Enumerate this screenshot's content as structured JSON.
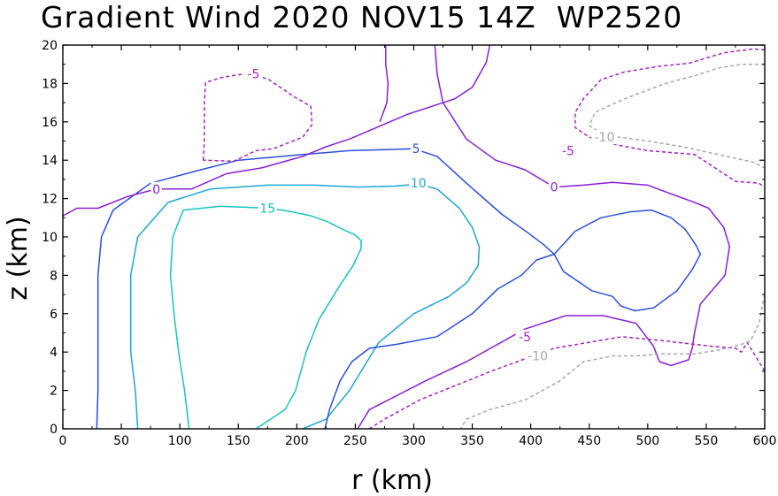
{
  "chart_data": {
    "type": "contour",
    "title": "Gradient Wind 2020 NOV15 14Z  WP2520",
    "xlabel": "r (km)",
    "ylabel": "z (km)",
    "xlim": [
      0,
      600
    ],
    "ylim": [
      0,
      20
    ],
    "xticks": [
      "0",
      "50",
      "100",
      "150",
      "200",
      "250",
      "300",
      "350",
      "400",
      "450",
      "500",
      "550",
      "600"
    ],
    "yticks": [
      "0",
      "2",
      "4",
      "6",
      "8",
      "10",
      "12",
      "14",
      "16",
      "18",
      "20"
    ],
    "colors": {
      "15": "#16c4c4",
      "10": "#1ea6dc",
      "5": "#2a4fe0",
      "0": "#8a1fd8",
      "-5": "#a81fc8",
      "-10": "#a8a8a8"
    },
    "contours": [
      {
        "level": 15,
        "label": "15",
        "dashed": false,
        "label_at": [
          175,
          11.5
        ],
        "points": [
          [
            108,
            0
          ],
          [
            104,
            2
          ],
          [
            99,
            4
          ],
          [
            95,
            6
          ],
          [
            92,
            8
          ],
          [
            94,
            10
          ],
          [
            103,
            11.4
          ],
          [
            135,
            11.6
          ],
          [
            177,
            11.5
          ],
          [
            197,
            11.3
          ],
          [
            212,
            11.1
          ],
          [
            226,
            10.8
          ],
          [
            241,
            10.35
          ],
          [
            250,
            10.1
          ],
          [
            255,
            9.8
          ],
          [
            255,
            9.4
          ],
          [
            248,
            8.5
          ],
          [
            235,
            7.3
          ],
          [
            219,
            5.7
          ],
          [
            208,
            4
          ],
          [
            199,
            2
          ],
          [
            190,
            1
          ],
          [
            170,
            0.2
          ],
          [
            165,
            0
          ]
        ]
      },
      {
        "level": 10,
        "label": "10",
        "dashed": false,
        "label_at": [
          304,
          12.8
        ],
        "points": [
          [
            64,
            0
          ],
          [
            62,
            2
          ],
          [
            58,
            4
          ],
          [
            58,
            6
          ],
          [
            58,
            8
          ],
          [
            64,
            10
          ],
          [
            90,
            11.8
          ],
          [
            126,
            12.5
          ],
          [
            175,
            12.7
          ],
          [
            215,
            12.7
          ],
          [
            252,
            12.6
          ],
          [
            283,
            12.65
          ],
          [
            305,
            12.75
          ],
          [
            320,
            12.5
          ],
          [
            339,
            11.5
          ],
          [
            350,
            10.5
          ],
          [
            356,
            9.5
          ],
          [
            355,
            8.5
          ],
          [
            345,
            7.6
          ],
          [
            330,
            6.9
          ],
          [
            300,
            6
          ],
          [
            270,
            4.5
          ],
          [
            245,
            2
          ],
          [
            225,
            0.5
          ],
          [
            205,
            0
          ]
        ]
      },
      {
        "level": 5,
        "label": "5",
        "dashed": false,
        "label_at": [
          302,
          14.6
        ],
        "points": [
          [
            29,
            0
          ],
          [
            30,
            2
          ],
          [
            30,
            4
          ],
          [
            30,
            6
          ],
          [
            30,
            8
          ],
          [
            33,
            10
          ],
          [
            43,
            11.4
          ],
          [
            75,
            12.8
          ],
          [
            118,
            13.5
          ],
          [
            150,
            14
          ],
          [
            205,
            14.3
          ],
          [
            245,
            14.5
          ],
          [
            275,
            14.55
          ],
          [
            300,
            14.6
          ],
          [
            320,
            14.2
          ],
          [
            345,
            12.8
          ],
          [
            375,
            11.2
          ],
          [
            398,
            10.2
          ],
          [
            411,
            9.6
          ],
          [
            420,
            9.1
          ],
          [
            438,
            10.3
          ],
          [
            460,
            11
          ],
          [
            484,
            11.3
          ],
          [
            503,
            11.4
          ],
          [
            520,
            11
          ],
          [
            532,
            10.4
          ],
          [
            541,
            9.6
          ],
          [
            545,
            9.1
          ],
          [
            538,
            8.3
          ],
          [
            525,
            7.2
          ],
          [
            505,
            6.3
          ],
          [
            489,
            6.15
          ],
          [
            477,
            6.4
          ],
          [
            470,
            6.9
          ],
          [
            452,
            7.2
          ],
          [
            440,
            7.7
          ],
          [
            428,
            8.2
          ],
          [
            420,
            9.1
          ],
          [
            405,
            8.8
          ],
          [
            392,
            8
          ],
          [
            372,
            7.3
          ],
          [
            350,
            6
          ],
          [
            320,
            4.8
          ],
          [
            285,
            4.4
          ],
          [
            262,
            4.2
          ],
          [
            247,
            3.5
          ],
          [
            237,
            2.5
          ],
          [
            228,
            1
          ],
          [
            224,
            0
          ]
        ]
      },
      {
        "level": 0,
        "label": "0",
        "dashed": false,
        "label_at": [
          80,
          12.5
        ],
        "points": [
          [
            0,
            11.1
          ],
          [
            12,
            11.5
          ],
          [
            30,
            11.5
          ],
          [
            55,
            12.1
          ],
          [
            80,
            12.5
          ],
          [
            110,
            12.5
          ],
          [
            140,
            13.3
          ],
          [
            170,
            13.6
          ],
          [
            205,
            14.2
          ],
          [
            225,
            14.7
          ],
          [
            245,
            15.1
          ],
          [
            270,
            15.75
          ],
          [
            295,
            16.4
          ],
          [
            335,
            17.2
          ],
          [
            350,
            17.8
          ],
          [
            362,
            19.1
          ],
          [
            365,
            20
          ]
        ]
      },
      {
        "level": 0,
        "label": "0",
        "dashed": false,
        "label_at": [
          420,
          12.6
        ],
        "points": [
          [
            318,
            20
          ],
          [
            320,
            18.5
          ],
          [
            325,
            17
          ],
          [
            345,
            15.1
          ],
          [
            370,
            14
          ],
          [
            395,
            13.5
          ],
          [
            420,
            12.6
          ],
          [
            445,
            12.7
          ],
          [
            470,
            12.85
          ],
          [
            500,
            12.7
          ],
          [
            522,
            12.2
          ],
          [
            540,
            11.8
          ],
          [
            552,
            11.5
          ],
          [
            565,
            10.5
          ],
          [
            570,
            9.5
          ],
          [
            566,
            8
          ],
          [
            545,
            6.5
          ],
          [
            540,
            5
          ],
          [
            538,
            4.2
          ],
          [
            535,
            3.6
          ],
          [
            520,
            3.3
          ],
          [
            510,
            3.5
          ],
          [
            505,
            4.3
          ],
          [
            490,
            5.5
          ],
          [
            462,
            5.9
          ],
          [
            430,
            5.9
          ],
          [
            395,
            5.2
          ],
          [
            345,
            3.5
          ],
          [
            310,
            2.5
          ],
          [
            262,
            1
          ],
          [
            252,
            0
          ]
        ]
      },
      {
        "level": 0,
        "label": "",
        "dashed": false,
        "points": [
          [
            276,
            20
          ],
          [
            276,
            19
          ],
          [
            278,
            18
          ],
          [
            277,
            17
          ],
          [
            271,
            16
          ]
        ]
      },
      {
        "level": -5,
        "label": "-5",
        "dashed": true,
        "label_at": [
          163,
          18.5
        ],
        "points": [
          [
            120,
            14
          ],
          [
            121,
            15
          ],
          [
            121,
            16
          ],
          [
            121,
            17
          ],
          [
            122,
            18.05
          ],
          [
            135,
            18.3
          ],
          [
            155,
            18.5
          ],
          [
            175,
            18.25
          ],
          [
            198,
            17.3
          ],
          [
            212,
            16.8
          ],
          [
            213,
            15.85
          ],
          [
            205,
            15.2
          ],
          [
            180,
            14.6
          ],
          [
            165,
            14.5
          ],
          [
            146,
            13.95
          ],
          [
            120,
            14
          ]
        ]
      },
      {
        "level": -5,
        "label": "-5",
        "dashed": true,
        "label_at": [
          432,
          14.5
        ],
        "points": [
          [
            600,
            19.75
          ],
          [
            590,
            19.8
          ],
          [
            565,
            19.6
          ],
          [
            535,
            19.05
          ],
          [
            510,
            18.9
          ],
          [
            480,
            18.6
          ],
          [
            460,
            18.2
          ],
          [
            445,
            17.2
          ],
          [
            438,
            16.5
          ],
          [
            438,
            15.7
          ],
          [
            450,
            15.2
          ],
          [
            473,
            14.8
          ],
          [
            500,
            14.5
          ],
          [
            540,
            14.3
          ],
          [
            575,
            12.9
          ],
          [
            595,
            12.8
          ],
          [
            600,
            12.6
          ]
        ]
      },
      {
        "level": -5,
        "label": "-5",
        "dashed": true,
        "label_at": [
          395,
          4.8
        ],
        "points": [
          [
            600,
            3
          ],
          [
            590,
            4
          ],
          [
            585,
            4.5
          ],
          [
            580,
            4
          ],
          [
            575,
            4.2
          ],
          [
            555,
            4.3
          ],
          [
            512,
            4.6
          ],
          [
            478,
            4.8
          ],
          [
            420,
            4.2
          ],
          [
            366,
            3
          ],
          [
            305,
            1.5
          ],
          [
            275,
            0.5
          ],
          [
            262,
            0
          ]
        ]
      },
      {
        "level": -10,
        "label": "-10",
        "dashed": true,
        "label_at": [
          463,
          15.2
        ],
        "points": [
          [
            600,
            19
          ],
          [
            580,
            19
          ],
          [
            560,
            18.8
          ],
          [
            540,
            18.4
          ],
          [
            515,
            18
          ],
          [
            480,
            17.2
          ],
          [
            455,
            16.5
          ],
          [
            450,
            15.8
          ],
          [
            463,
            15.3
          ],
          [
            476,
            15.2
          ],
          [
            500,
            15
          ],
          [
            530,
            14.7
          ],
          [
            560,
            14.3
          ],
          [
            590,
            13.9
          ],
          [
            600,
            13.6
          ]
        ]
      },
      {
        "level": -10,
        "label": "-10",
        "dashed": true,
        "label_at": [
          406,
          3.8
        ],
        "points": [
          [
            600,
            7
          ],
          [
            595,
            5.5
          ],
          [
            588,
            4.6
          ],
          [
            580,
            4.4
          ],
          [
            560,
            4.1
          ],
          [
            540,
            3.9
          ],
          [
            510,
            3.9
          ],
          [
            490,
            3.8
          ],
          [
            470,
            3.8
          ],
          [
            445,
            3.5
          ],
          [
            425,
            2.5
          ],
          [
            395,
            1.5
          ],
          [
            365,
            1
          ],
          [
            345,
            0.5
          ],
          [
            340,
            0
          ]
        ]
      }
    ]
  }
}
